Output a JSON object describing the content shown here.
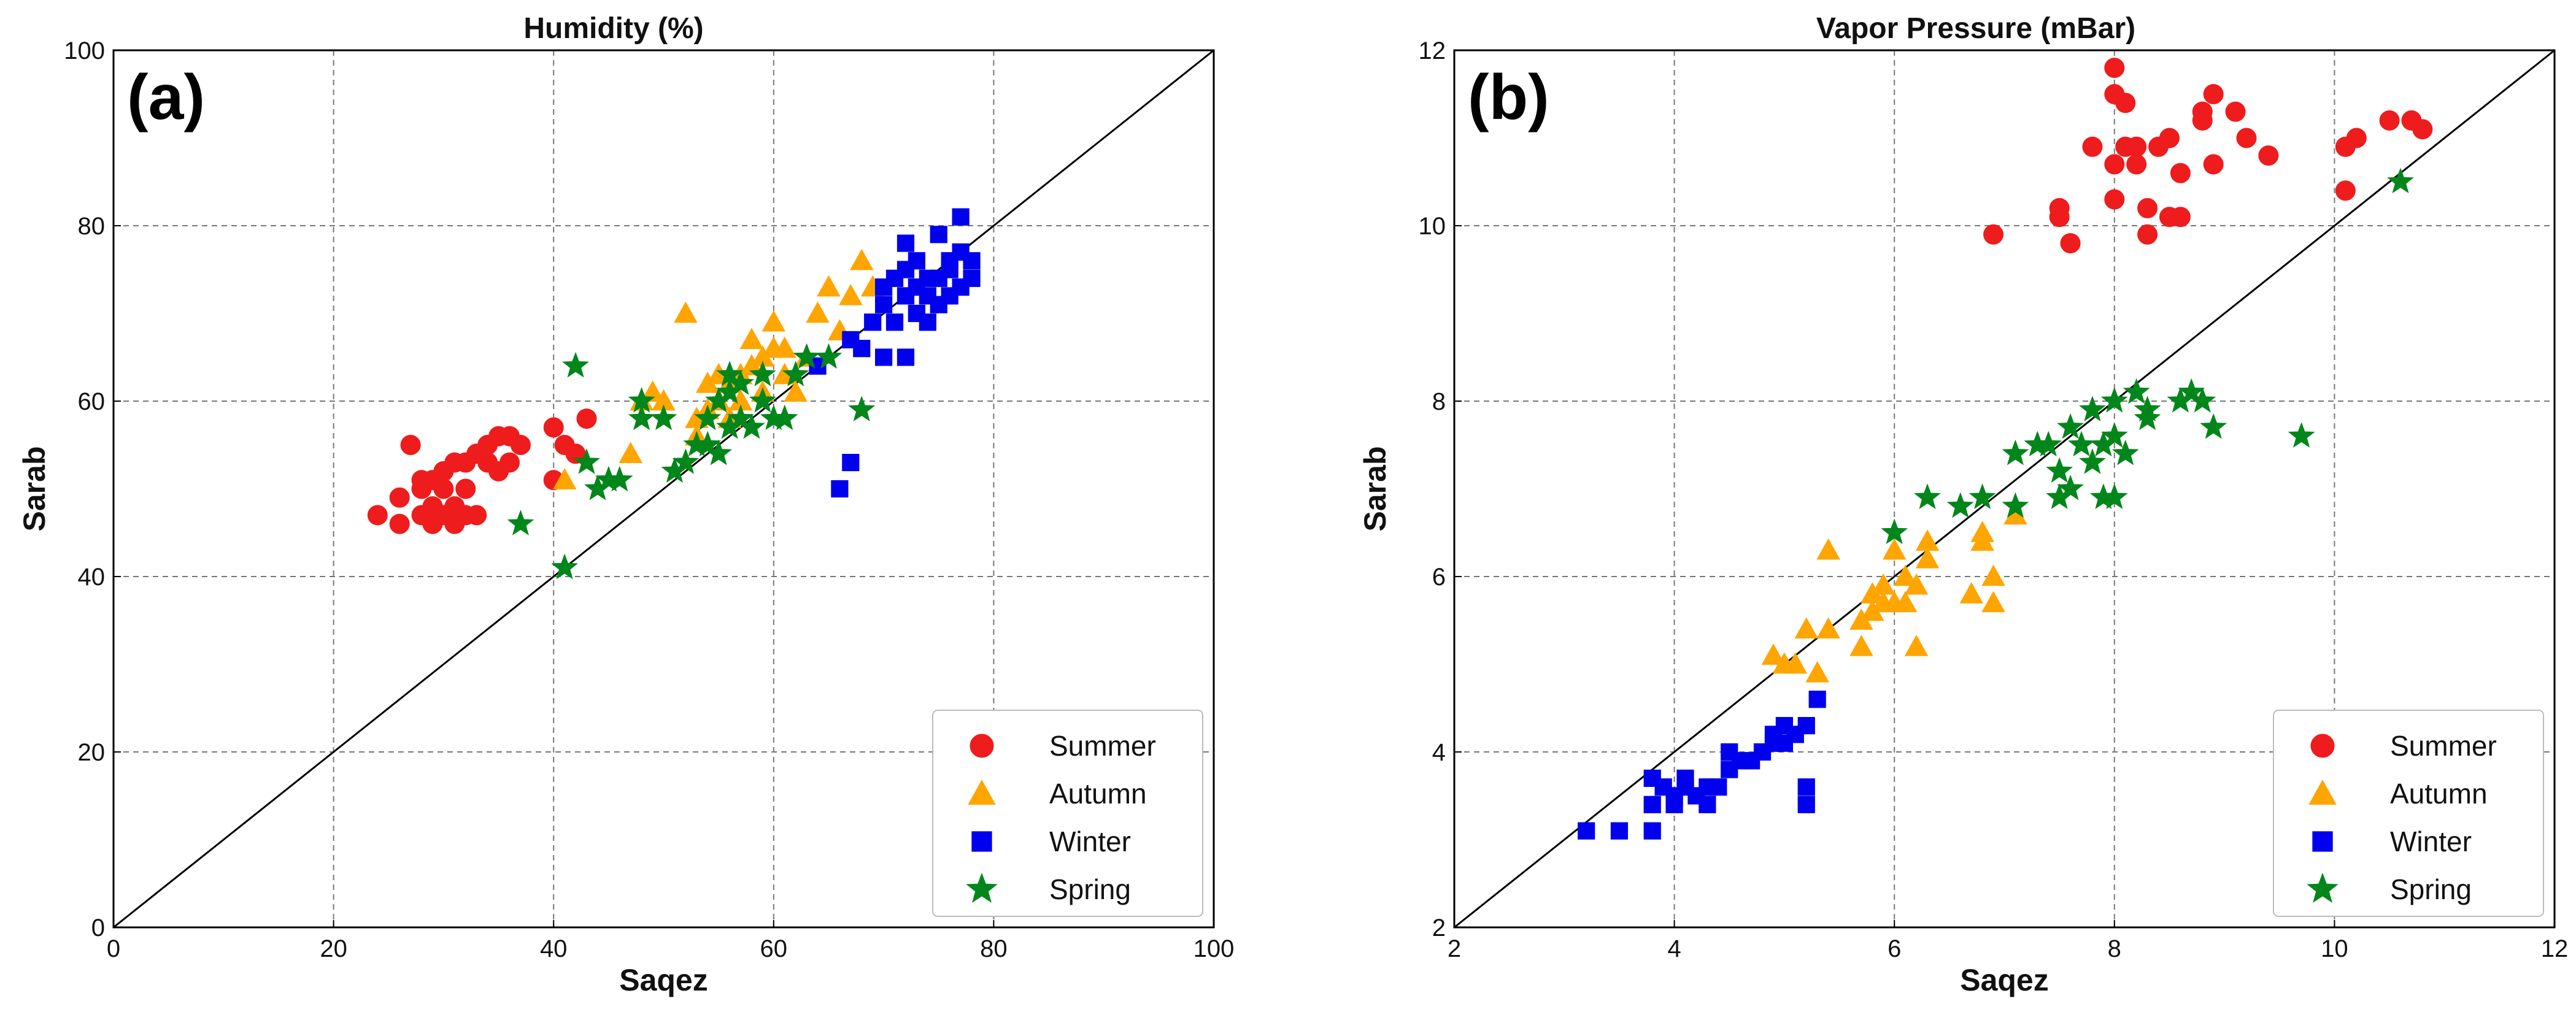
{
  "figure": {
    "description_labels": [
      "(a)",
      "(b)"
    ]
  },
  "chart_data": [
    {
      "type": "scatter",
      "panel_label": "(a)",
      "title": "Humidity (%)",
      "xlabel": "Saqez",
      "ylabel": "Sarab",
      "xlim": [
        0,
        100
      ],
      "ylim": [
        0,
        100
      ],
      "xticks": [
        0,
        20,
        40,
        60,
        80,
        100
      ],
      "yticks": [
        0,
        20,
        40,
        60,
        80,
        100
      ],
      "grid": true,
      "reference_line": "y = x",
      "legend_position": "bottom-right",
      "series": [
        {
          "name": "Summer",
          "marker": "circle",
          "color": "#ee1c1c",
          "points": [
            [
              24,
              47
            ],
            [
              26,
              46
            ],
            [
              26,
              49
            ],
            [
              27,
              55
            ],
            [
              28,
              47
            ],
            [
              28,
              50
            ],
            [
              28,
              51
            ],
            [
              29,
              46
            ],
            [
              29,
              48
            ],
            [
              29,
              51
            ],
            [
              30,
              47
            ],
            [
              30,
              50
            ],
            [
              30,
              52
            ],
            [
              31,
              46
            ],
            [
              31,
              48
            ],
            [
              31,
              53
            ],
            [
              32,
              47
            ],
            [
              32,
              50
            ],
            [
              32,
              53
            ],
            [
              33,
              47
            ],
            [
              33,
              54
            ],
            [
              34,
              55
            ],
            [
              34,
              53
            ],
            [
              35,
              56
            ],
            [
              35,
              52
            ],
            [
              36,
              53
            ],
            [
              36,
              56
            ],
            [
              37,
              55
            ],
            [
              40,
              57
            ],
            [
              40,
              51
            ],
            [
              41,
              55
            ],
            [
              42,
              54
            ],
            [
              43,
              58
            ]
          ]
        },
        {
          "name": "Autumn",
          "marker": "triangle",
          "color": "#ffa500",
          "points": [
            [
              41,
              51
            ],
            [
              47,
              54
            ],
            [
              48,
              60
            ],
            [
              49,
              61
            ],
            [
              50,
              60
            ],
            [
              52,
              70
            ],
            [
              53,
              56
            ],
            [
              53,
              58
            ],
            [
              54,
              62
            ],
            [
              54,
              59
            ],
            [
              55,
              60
            ],
            [
              55,
              63
            ],
            [
              56,
              58
            ],
            [
              56,
              62
            ],
            [
              57,
              60
            ],
            [
              57,
              63
            ],
            [
              58,
              64
            ],
            [
              58,
              67
            ],
            [
              59,
              61
            ],
            [
              59,
              65
            ],
            [
              60,
              66
            ],
            [
              60,
              69
            ],
            [
              61,
              63
            ],
            [
              61,
              66
            ],
            [
              62,
              61
            ],
            [
              63,
              65
            ],
            [
              64,
              70
            ],
            [
              65,
              73
            ],
            [
              66,
              68
            ],
            [
              67,
              72
            ],
            [
              68,
              76
            ],
            [
              69,
              73
            ]
          ]
        },
        {
          "name": "Winter",
          "marker": "square",
          "color": "#0000ee",
          "points": [
            [
              64,
              64
            ],
            [
              66,
              50
            ],
            [
              67,
              53
            ],
            [
              67,
              67
            ],
            [
              68,
              66
            ],
            [
              69,
              69
            ],
            [
              70,
              65
            ],
            [
              70,
              71
            ],
            [
              70,
              73
            ],
            [
              71,
              74
            ],
            [
              71,
              69
            ],
            [
              72,
              65
            ],
            [
              72,
              75
            ],
            [
              72,
              78
            ],
            [
              73,
              73
            ],
            [
              73,
              70
            ],
            [
              74,
              72
            ],
            [
              74,
              69
            ],
            [
              75,
              71
            ],
            [
              75,
              74
            ],
            [
              75,
              79
            ],
            [
              76,
              76
            ],
            [
              76,
              72
            ],
            [
              76,
              75
            ],
            [
              77,
              77
            ],
            [
              77,
              81
            ],
            [
              77,
              73
            ],
            [
              78,
              74
            ],
            [
              78,
              76
            ],
            [
              72,
              72
            ],
            [
              73,
              76
            ],
            [
              74,
              74
            ]
          ]
        },
        {
          "name": "Spring",
          "marker": "star",
          "color": "#00861a",
          "points": [
            [
              37,
              46
            ],
            [
              41,
              41
            ],
            [
              42,
              64
            ],
            [
              43,
              53
            ],
            [
              44,
              50
            ],
            [
              45,
              51
            ],
            [
              46,
              51
            ],
            [
              48,
              58
            ],
            [
              48,
              60
            ],
            [
              50,
              58
            ],
            [
              51,
              52
            ],
            [
              52,
              53
            ],
            [
              53,
              55
            ],
            [
              54,
              55
            ],
            [
              54,
              58
            ],
            [
              55,
              54
            ],
            [
              55,
              60
            ],
            [
              56,
              57
            ],
            [
              56,
              61
            ],
            [
              57,
              62
            ],
            [
              58,
              57
            ],
            [
              59,
              63
            ],
            [
              59,
              60
            ],
            [
              60,
              58
            ],
            [
              61,
              58
            ],
            [
              62,
              63
            ],
            [
              63,
              65
            ],
            [
              65,
              65
            ],
            [
              68,
              59
            ],
            [
              56,
              63
            ],
            [
              57,
              58
            ]
          ]
        }
      ]
    },
    {
      "type": "scatter",
      "panel_label": "(b)",
      "title": "Vapor Pressure (mBar)",
      "xlabel": "Saqez",
      "ylabel": "Sarab",
      "xlim": [
        2,
        12
      ],
      "ylim": [
        2,
        12
      ],
      "xticks": [
        2,
        4,
        6,
        8,
        10,
        12
      ],
      "yticks": [
        2,
        4,
        6,
        8,
        10,
        12
      ],
      "grid": true,
      "reference_line": "y = x",
      "legend_position": "bottom-right",
      "series": [
        {
          "name": "Summer",
          "marker": "circle",
          "color": "#ee1c1c",
          "points": [
            [
              6.9,
              9.9
            ],
            [
              7.5,
              10.2
            ],
            [
              7.5,
              10.1
            ],
            [
              7.6,
              9.8
            ],
            [
              7.8,
              10.9
            ],
            [
              8.0,
              11.8
            ],
            [
              8.0,
              11.5
            ],
            [
              8.0,
              10.7
            ],
            [
              8.0,
              10.3
            ],
            [
              8.1,
              11.4
            ],
            [
              8.1,
              10.9
            ],
            [
              8.2,
              10.9
            ],
            [
              8.2,
              10.7
            ],
            [
              8.3,
              10.2
            ],
            [
              8.3,
              9.9
            ],
            [
              8.4,
              10.9
            ],
            [
              8.5,
              11.0
            ],
            [
              8.5,
              10.1
            ],
            [
              8.6,
              10.1
            ],
            [
              8.6,
              10.6
            ],
            [
              8.8,
              11.2
            ],
            [
              8.8,
              11.3
            ],
            [
              8.9,
              11.5
            ],
            [
              8.9,
              10.7
            ],
            [
              9.1,
              11.3
            ],
            [
              9.2,
              11.0
            ],
            [
              9.4,
              10.8
            ],
            [
              10.1,
              10.9
            ],
            [
              10.1,
              10.4
            ],
            [
              10.2,
              11.0
            ],
            [
              10.5,
              11.2
            ],
            [
              10.7,
              11.2
            ],
            [
              10.8,
              11.1
            ]
          ]
        },
        {
          "name": "Autumn",
          "marker": "triangle",
          "color": "#ffa500",
          "points": [
            [
              4.9,
              5.1
            ],
            [
              5.0,
              5.0
            ],
            [
              5.1,
              5.0
            ],
            [
              5.2,
              5.4
            ],
            [
              5.3,
              4.9
            ],
            [
              5.4,
              5.4
            ],
            [
              5.4,
              6.3
            ],
            [
              5.7,
              5.2
            ],
            [
              5.7,
              5.5
            ],
            [
              5.8,
              5.6
            ],
            [
              5.8,
              5.8
            ],
            [
              5.9,
              5.9
            ],
            [
              5.9,
              5.7
            ],
            [
              6.0,
              5.7
            ],
            [
              6.0,
              6.3
            ],
            [
              6.1,
              6.0
            ],
            [
              6.1,
              5.7
            ],
            [
              6.2,
              5.9
            ],
            [
              6.2,
              5.2
            ],
            [
              6.3,
              6.2
            ],
            [
              6.3,
              6.4
            ],
            [
              6.7,
              5.8
            ],
            [
              6.8,
              6.4
            ],
            [
              6.8,
              6.5
            ],
            [
              6.9,
              6.0
            ],
            [
              6.9,
              5.7
            ],
            [
              7.1,
              6.7
            ]
          ]
        },
        {
          "name": "Winter",
          "marker": "square",
          "color": "#0000ee",
          "points": [
            [
              3.2,
              3.1
            ],
            [
              3.5,
              3.1
            ],
            [
              3.8,
              3.1
            ],
            [
              3.8,
              3.4
            ],
            [
              3.8,
              3.7
            ],
            [
              3.9,
              3.6
            ],
            [
              4.0,
              3.5
            ],
            [
              4.0,
              3.4
            ],
            [
              4.1,
              3.6
            ],
            [
              4.1,
              3.7
            ],
            [
              4.2,
              3.5
            ],
            [
              4.3,
              3.4
            ],
            [
              4.3,
              3.6
            ],
            [
              4.4,
              3.6
            ],
            [
              4.5,
              3.8
            ],
            [
              4.5,
              4.0
            ],
            [
              4.6,
              3.9
            ],
            [
              4.7,
              3.9
            ],
            [
              4.8,
              4.0
            ],
            [
              4.9,
              4.1
            ],
            [
              4.9,
              4.2
            ],
            [
              5.0,
              4.1
            ],
            [
              5.0,
              4.3
            ],
            [
              5.1,
              4.2
            ],
            [
              5.2,
              4.3
            ],
            [
              5.2,
              3.6
            ],
            [
              5.2,
              3.4
            ],
            [
              5.3,
              4.6
            ]
          ]
        },
        {
          "name": "Spring",
          "marker": "star",
          "color": "#00861a",
          "points": [
            [
              6.0,
              6.5
            ],
            [
              6.3,
              6.9
            ],
            [
              6.6,
              6.8
            ],
            [
              6.8,
              6.9
            ],
            [
              7.1,
              7.4
            ],
            [
              7.1,
              6.8
            ],
            [
              7.3,
              7.5
            ],
            [
              7.4,
              7.5
            ],
            [
              7.5,
              7.2
            ],
            [
              7.5,
              6.9
            ],
            [
              7.6,
              7.0
            ],
            [
              7.6,
              7.7
            ],
            [
              7.7,
              7.5
            ],
            [
              7.8,
              7.3
            ],
            [
              7.8,
              7.9
            ],
            [
              7.9,
              6.9
            ],
            [
              7.9,
              7.5
            ],
            [
              8.0,
              7.6
            ],
            [
              8.0,
              8.0
            ],
            [
              8.0,
              6.9
            ],
            [
              8.1,
              7.4
            ],
            [
              8.2,
              8.1
            ],
            [
              8.3,
              7.9
            ],
            [
              8.3,
              7.8
            ],
            [
              8.6,
              8.0
            ],
            [
              8.7,
              8.1
            ],
            [
              8.8,
              8.0
            ],
            [
              8.9,
              7.7
            ],
            [
              9.7,
              7.6
            ],
            [
              10.6,
              10.5
            ]
          ]
        }
      ]
    }
  ]
}
